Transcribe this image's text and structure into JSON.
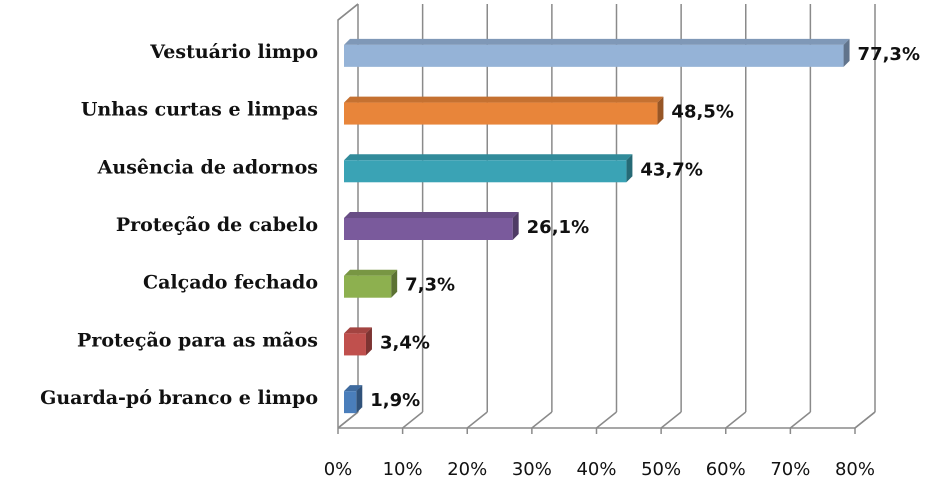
{
  "chart_data": {
    "type": "bar3d_horizontal",
    "categories": [
      "Vestuário limpo",
      "Unhas curtas e limpas",
      "Ausência de adornos",
      "Proteção de cabelo",
      "Calçado fechado",
      "Proteção para as mãos",
      "Guarda-pó branco e limpo"
    ],
    "values": [
      77.3,
      48.5,
      43.7,
      26.1,
      7.3,
      3.4,
      1.9
    ],
    "value_labels": [
      "77,3%",
      "48,5%",
      "43,7%",
      "26,1%",
      "7,3%",
      "3,4%",
      "1,9%"
    ],
    "colors": [
      "#95b3d7",
      "#e8853a",
      "#3aa3b5",
      "#7a5a9c",
      "#8db04f",
      "#c0504d",
      "#4a7ebb"
    ],
    "xlim": [
      0,
      80
    ],
    "xticks": [
      {
        "value": 0,
        "label": "0%"
      },
      {
        "value": 10,
        "label": "10%"
      },
      {
        "value": 20,
        "label": "20%"
      },
      {
        "value": 30,
        "label": "30%"
      },
      {
        "value": 40,
        "label": "40%"
      },
      {
        "value": 50,
        "label": "50%"
      },
      {
        "value": 60,
        "label": "60%"
      },
      {
        "value": 70,
        "label": "70%"
      },
      {
        "value": 80,
        "label": "80%"
      }
    ],
    "grid": true
  }
}
